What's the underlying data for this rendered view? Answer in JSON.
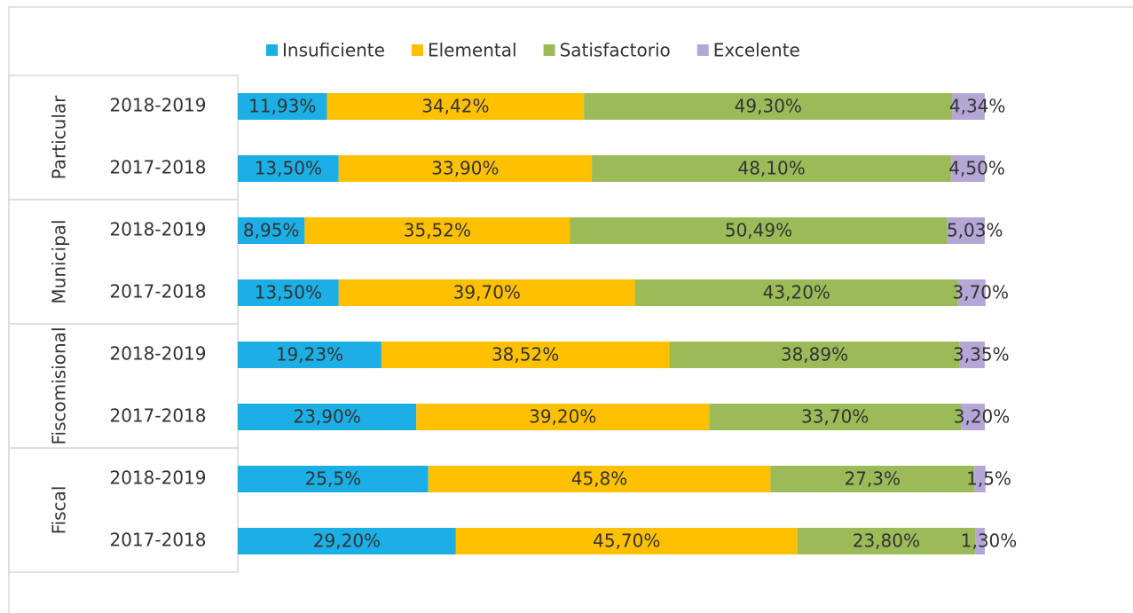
{
  "chart_data": {
    "type": "stacked-bar-horizontal",
    "groups": [
      {
        "name": "Particular",
        "categories": [
          "2018-2019",
          "2017-2018"
        ]
      },
      {
        "name": "Municipal",
        "categories": [
          "2018-2019",
          "2017-2018"
        ]
      },
      {
        "name": "Fiscomisional",
        "categories": [
          "2018-2019",
          "2017-2018"
        ]
      },
      {
        "name": "Fiscal",
        "categories": [
          "2018-2019",
          "2017-2018"
        ]
      }
    ],
    "xlim": [
      0,
      100
    ],
    "legend": "top",
    "series": [
      {
        "name": "Insuficiente",
        "color": "#1cafe5",
        "values": [
          11.93,
          13.5,
          8.95,
          13.5,
          19.23,
          23.9,
          25.5,
          29.2
        ],
        "value_labels": [
          "11,93%",
          "13,50%",
          "8,95%",
          "13,50%",
          "19,23%",
          "23,90%",
          "25,5%",
          "29,20%"
        ]
      },
      {
        "name": "Elemental",
        "color": "#ffc000",
        "values": [
          34.42,
          33.9,
          35.52,
          39.7,
          38.52,
          39.2,
          45.8,
          45.7
        ],
        "value_labels": [
          "34,42%",
          "33,90%",
          "35,52%",
          "39,70%",
          "38,52%",
          "39,20%",
          "45,8%",
          "45,70%"
        ]
      },
      {
        "name": "Satisfactorio",
        "color": "#9bbb59",
        "values": [
          49.3,
          48.1,
          50.49,
          43.2,
          38.89,
          33.7,
          27.3,
          23.8
        ],
        "value_labels": [
          "49,30%",
          "48,10%",
          "50,49%",
          "43,20%",
          "38,89%",
          "33,70%",
          "27,3%",
          "23,80%"
        ]
      },
      {
        "name": "Excelente",
        "color": "#b4a7d6",
        "values": [
          4.34,
          4.5,
          5.03,
          3.7,
          3.35,
          3.2,
          1.5,
          1.3
        ],
        "value_labels": [
          "4,34%",
          "4,50%",
          "5,03%",
          "3,70%",
          "3,35%",
          "3,20%",
          "1,5%",
          "1,30%"
        ]
      }
    ]
  }
}
